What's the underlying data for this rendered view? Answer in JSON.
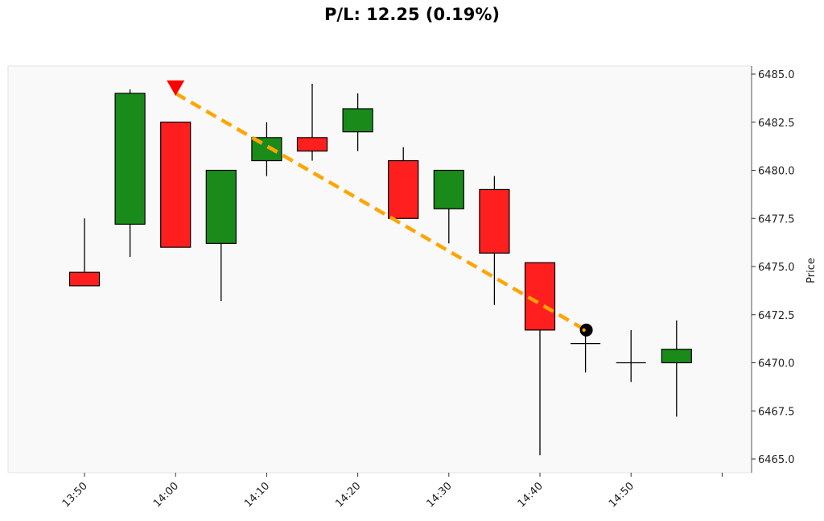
{
  "chart_data": {
    "type": "candlestick",
    "title": "P/L: 12.25 (0.19%)",
    "ylabel": "Price",
    "xlabel": "",
    "ylim": [
      6465.0,
      6485.0
    ],
    "yticks": [
      6465.0,
      6467.5,
      6470.0,
      6472.5,
      6475.0,
      6477.5,
      6480.0,
      6482.5,
      6485.0
    ],
    "xticks": [
      "13:50",
      "14:00",
      "14:10",
      "14:20",
      "14:30",
      "14:40",
      "14:50",
      ""
    ],
    "grid": false,
    "colors": {
      "up": "#1a8a1a",
      "down": "#ff1f1f",
      "trade_line": "#ffa500",
      "entry_marker": "#ff0000",
      "exit_marker": "#000000",
      "background": "#f9f9f9"
    },
    "candles": [
      {
        "time": "13:50",
        "open": 6474.7,
        "high": 6477.5,
        "low": 6474.0,
        "close": 6474.0
      },
      {
        "time": "13:55",
        "open": 6477.2,
        "high": 6484.2,
        "low": 6475.5,
        "close": 6484.0
      },
      {
        "time": "14:00",
        "open": 6482.5,
        "high": 6482.5,
        "low": 6476.0,
        "close": 6476.0
      },
      {
        "time": "14:05",
        "open": 6476.2,
        "high": 6480.0,
        "low": 6473.2,
        "close": 6480.0
      },
      {
        "time": "14:10",
        "open": 6480.5,
        "high": 6482.5,
        "low": 6479.7,
        "close": 6481.7
      },
      {
        "time": "14:15",
        "open": 6481.7,
        "high": 6484.5,
        "low": 6480.5,
        "close": 6481.0
      },
      {
        "time": "14:20",
        "open": 6482.0,
        "high": 6484.0,
        "low": 6481.0,
        "close": 6483.2
      },
      {
        "time": "14:25",
        "open": 6480.5,
        "high": 6481.2,
        "low": 6477.5,
        "close": 6477.5
      },
      {
        "time": "14:30",
        "open": 6478.0,
        "high": 6480.0,
        "low": 6476.2,
        "close": 6480.0
      },
      {
        "time": "14:35",
        "open": 6479.0,
        "high": 6479.7,
        "low": 6473.0,
        "close": 6475.7
      },
      {
        "time": "14:40",
        "open": 6475.2,
        "high": 6475.2,
        "low": 6465.2,
        "close": 6471.7
      },
      {
        "time": "14:45",
        "open": 6471.0,
        "high": 6471.7,
        "low": 6469.5,
        "close": 6471.0
      },
      {
        "time": "14:50",
        "open": 6470.0,
        "high": 6471.7,
        "low": 6469.0,
        "close": 6470.0
      },
      {
        "time": "14:55",
        "open": 6470.0,
        "high": 6472.2,
        "low": 6467.2,
        "close": 6470.7
      }
    ],
    "trade": {
      "entry": {
        "time": "14:00",
        "price": 6484.0
      },
      "exit": {
        "time": "14:45",
        "price": 6471.7
      }
    }
  }
}
